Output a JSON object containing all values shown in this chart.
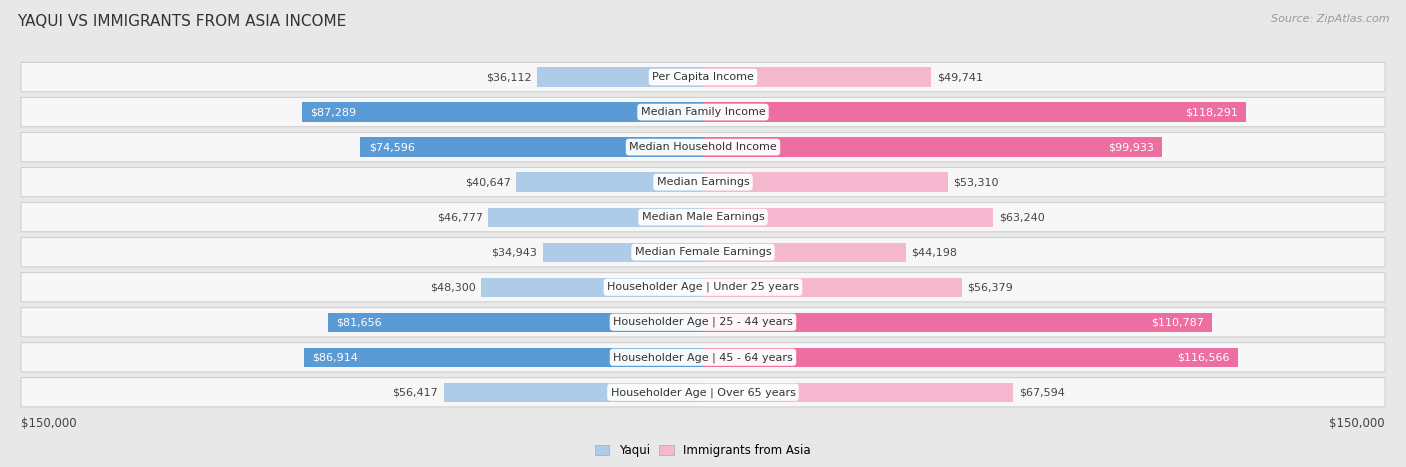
{
  "title": "YAQUI VS IMMIGRANTS FROM ASIA INCOME",
  "source": "Source: ZipAtlas.com",
  "categories": [
    "Per Capita Income",
    "Median Family Income",
    "Median Household Income",
    "Median Earnings",
    "Median Male Earnings",
    "Median Female Earnings",
    "Householder Age | Under 25 years",
    "Householder Age | 25 - 44 years",
    "Householder Age | 45 - 64 years",
    "Householder Age | Over 65 years"
  ],
  "yaqui_values": [
    36112,
    87289,
    74596,
    40647,
    46777,
    34943,
    48300,
    81656,
    86914,
    56417
  ],
  "asia_values": [
    49741,
    118291,
    99933,
    53310,
    63240,
    44198,
    56379,
    110787,
    116566,
    67594
  ],
  "yaqui_labels": [
    "$36,112",
    "$87,289",
    "$74,596",
    "$40,647",
    "$46,777",
    "$34,943",
    "$48,300",
    "$81,656",
    "$86,914",
    "$56,417"
  ],
  "asia_labels": [
    "$49,741",
    "$118,291",
    "$99,933",
    "$53,310",
    "$63,240",
    "$44,198",
    "$56,379",
    "$110,787",
    "$116,566",
    "$67,594"
  ],
  "yaqui_color_light": "#aecce8",
  "yaqui_color_dark": "#5b9bd5",
  "asia_color_light": "#f5b8cf",
  "asia_color_dark": "#ed6ea0",
  "yaqui_threshold": 70000,
  "asia_threshold": 90000,
  "max_value": 150000,
  "xlabel_left": "$150,000",
  "xlabel_right": "$150,000",
  "legend_yaqui": "Yaqui",
  "legend_asia": "Immigrants from Asia",
  "background_color": "#e8e8e8",
  "row_background": "#f7f7f7",
  "row_bg_alt": "#efefef",
  "title_fontsize": 11,
  "label_fontsize": 8,
  "category_fontsize": 8
}
